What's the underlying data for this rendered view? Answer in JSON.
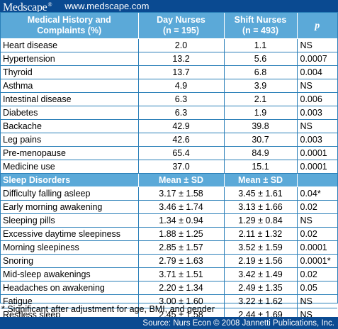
{
  "header": {
    "logo_text": "Medscape",
    "logo_mark": "®",
    "site_url": "www.medscape.com"
  },
  "table": {
    "columns": [
      {
        "label_line1": "Medical History and",
        "label_line2": "Complaints (%)"
      },
      {
        "label_line1": "Day Nurses",
        "label_line2": "(n = 195)"
      },
      {
        "label_line1": "Shift Nurses",
        "label_line2": "(n = 493)"
      },
      {
        "label_line1": "p",
        "label_line2": ""
      }
    ],
    "medical_rows": [
      {
        "item": "Heart disease",
        "day": "2.0",
        "shift": "1.1",
        "p": "NS"
      },
      {
        "item": "Hypertension",
        "day": "13.2",
        "shift": "5.6",
        "p": "0.0007"
      },
      {
        "item": "Thyroid",
        "day": "13.7",
        "shift": "6.8",
        "p": "0.004"
      },
      {
        "item": "Asthma",
        "day": "4.9",
        "shift": "3.9",
        "p": "NS"
      },
      {
        "item": "Intestinal disease",
        "day": "6.3",
        "shift": "2.1",
        "p": "0.006"
      },
      {
        "item": "Diabetes",
        "day": "6.3",
        "shift": "1.9",
        "p": "0.003"
      },
      {
        "item": "Backache",
        "day": "42.9",
        "shift": "39.8",
        "p": "NS"
      },
      {
        "item": "Leg pains",
        "day": "42.6",
        "shift": "30.7",
        "p": "0.003"
      },
      {
        "item": "Pre-menopause",
        "day": "65.4",
        "shift": "84.9",
        "p": "0.0001"
      },
      {
        "item": "Medicine use",
        "day": "37.0",
        "shift": "15.1",
        "p": "0.0001"
      }
    ],
    "sleep_section": {
      "label": "Sleep Disorders",
      "day": "Mean ± SD",
      "shift": "Mean ± SD",
      "p": ""
    },
    "sleep_rows": [
      {
        "item": "Difficulty falling asleep",
        "day": "3.17 ± 1.58",
        "shift": "3.45 ± 1.61",
        "p": "0.04*"
      },
      {
        "item": "Early morning awakening",
        "day": "3.46 ± 1.74",
        "shift": "3.13 ± 1.66",
        "p": "0.02"
      },
      {
        "item": "Sleeping pills",
        "day": "1.34 ± 0.94",
        "shift": "1.29 ± 0.84",
        "p": "NS"
      },
      {
        "item": "Excessive daytime sleepiness",
        "day": "1.88 ± 1.25",
        "shift": "2.11 ± 1.32",
        "p": "0.02"
      },
      {
        "item": "Morning sleepiness",
        "day": "2.85 ± 1.57",
        "shift": "3.52 ± 1.59",
        "p": "0.0001"
      },
      {
        "item": "Snoring",
        "day": "2.79 ± 1.63",
        "shift": "2.19 ± 1.56",
        "p": "0.0001*"
      },
      {
        "item": "Mid-sleep awakenings",
        "day": "3.71 ± 1.51",
        "shift": "3.42 ± 1.49",
        "p": "0.02"
      },
      {
        "item": "Headaches on awakening",
        "day": "2.20 ± 1.34",
        "shift": "2.49 ± 1.35",
        "p": "0.05"
      },
      {
        "item": "Fatigue",
        "day": "3.00 ± 1.60",
        "shift": "3.22 ± 1.62",
        "p": "NS"
      },
      {
        "item": "Restless sleep",
        "day": "2.45 ± 1.58",
        "shift": "2.44 ± 1.69",
        "p": "NS"
      }
    ]
  },
  "footnote": "* Significant after adjustment for age, BMI, and gender",
  "source": "Source: Nurs Econ © 2008 Jannetti Publications, Inc.",
  "colors": {
    "brand_blue": "#0a4a91",
    "header_blue": "#5ba9d8",
    "grid_blue": "#2a7fb8"
  }
}
